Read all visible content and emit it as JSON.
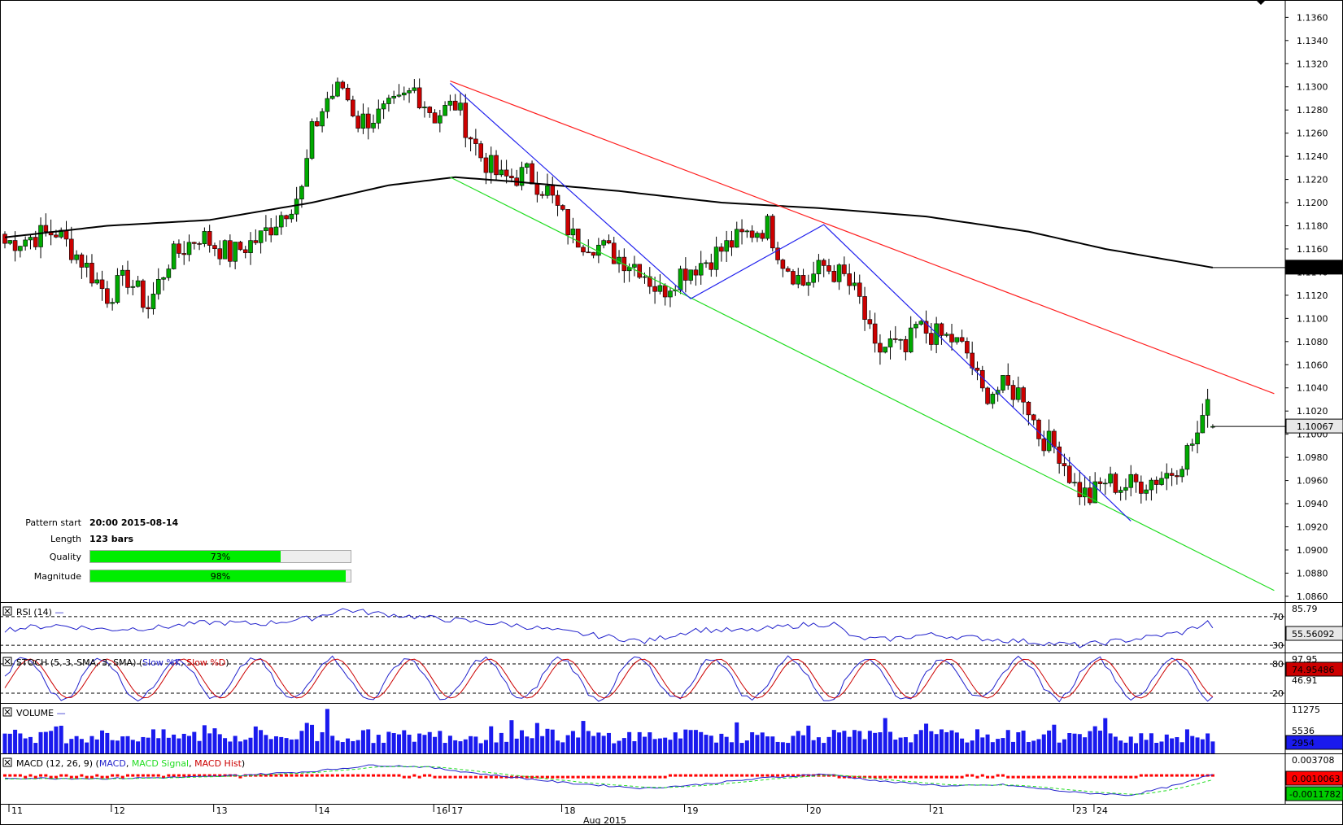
{
  "chart_data": {
    "type": "candlestick",
    "symbol_timeframe": "",
    "price_axis": {
      "ticks": [
        "1.1360",
        "1.1340",
        "1.1320",
        "1.1300",
        "1.1280",
        "1.1260",
        "1.1240",
        "1.1220",
        "1.1200",
        "1.1180",
        "1.1160",
        "1.1140",
        "1.1120",
        "1.1100",
        "1.1080",
        "1.1060",
        "1.1040",
        "1.1020",
        "1.1000",
        "1.0980",
        "1.0960",
        "1.0940",
        "1.0920",
        "1.0900",
        "1.0880",
        "1.0860"
      ],
      "ylim": [
        1.0855,
        1.1375
      ],
      "ma_label": "1.11439",
      "last_label": "1.10067"
    },
    "x_axis": {
      "day_labels": [
        "11",
        "12",
        "13",
        "14",
        "16",
        "17",
        "18",
        "19",
        "20",
        "21",
        "23",
        "24"
      ],
      "month_label": "Aug 2015"
    },
    "pattern_info": {
      "pattern_start_label": "Pattern start",
      "pattern_start_value": "20:00 2015-08-14",
      "length_label": "Length",
      "length_value": "123 bars",
      "quality_label": "Quality",
      "quality_value": 73,
      "quality_text": "73%",
      "magnitude_label": "Magnitude",
      "magnitude_value": 98,
      "magnitude_text": "98%"
    },
    "price_anchors": [
      [
        0,
        1.1165
      ],
      [
        5,
        1.117
      ],
      [
        10,
        1.1175
      ],
      [
        15,
        1.115
      ],
      [
        20,
        1.112
      ],
      [
        24,
        1.1135
      ],
      [
        28,
        1.111
      ],
      [
        32,
        1.115
      ],
      [
        38,
        1.1172
      ],
      [
        44,
        1.1155
      ],
      [
        50,
        1.117
      ],
      [
        55,
        1.1195
      ],
      [
        58,
        1.121
      ],
      [
        60,
        1.126
      ],
      [
        63,
        1.129
      ],
      [
        66,
        1.13
      ],
      [
        69,
        1.127
      ],
      [
        73,
        1.1275
      ],
      [
        77,
        1.1285
      ],
      [
        80,
        1.1298
      ],
      [
        84,
        1.1275
      ],
      [
        88,
        1.1285
      ],
      [
        93,
        1.124
      ],
      [
        97,
        1.122
      ],
      [
        102,
        1.1225
      ],
      [
        106,
        1.121
      ],
      [
        111,
        1.117
      ],
      [
        115,
        1.1165
      ],
      [
        119,
        1.1155
      ],
      [
        124,
        1.1145
      ],
      [
        128,
        1.1122
      ],
      [
        132,
        1.114
      ],
      [
        137,
        1.115
      ],
      [
        142,
        1.1165
      ],
      [
        146,
        1.1175
      ],
      [
        149,
        1.118
      ],
      [
        152,
        1.115
      ],
      [
        156,
        1.113
      ],
      [
        160,
        1.1145
      ],
      [
        164,
        1.1135
      ],
      [
        167,
        1.1115
      ],
      [
        170,
        1.107
      ],
      [
        173,
        1.1078
      ],
      [
        176,
        1.107
      ],
      [
        178,
        1.1092
      ],
      [
        182,
        1.1085
      ],
      [
        185,
        1.1082
      ],
      [
        188,
        1.107
      ],
      [
        191,
        1.1035
      ],
      [
        195,
        1.104
      ],
      [
        199,
        1.1035
      ],
      [
        202,
        1.1
      ],
      [
        206,
        1.0985
      ],
      [
        209,
        1.0955
      ],
      [
        212,
        1.0945
      ],
      [
        215,
        1.096
      ],
      [
        218,
        1.0955
      ],
      [
        222,
        1.0958
      ],
      [
        225,
        1.0962
      ],
      [
        228,
        1.0968
      ],
      [
        231,
        1.0985
      ],
      [
        235,
        1.1015
      ],
      [
        236,
        1.1007
      ]
    ],
    "ma": [
      [
        0,
        1.117
      ],
      [
        20,
        1.118
      ],
      [
        40,
        1.1185
      ],
      [
        60,
        1.12
      ],
      [
        75,
        1.1215
      ],
      [
        88,
        1.1222
      ],
      [
        100,
        1.1218
      ],
      [
        120,
        1.121
      ],
      [
        140,
        1.12
      ],
      [
        160,
        1.1195
      ],
      [
        180,
        1.1188
      ],
      [
        200,
        1.1175
      ],
      [
        215,
        1.116
      ],
      [
        236,
        1.11439
      ]
    ],
    "channel": {
      "upper": [
        [
          87,
          1.1305
        ],
        [
          248,
          1.1035
        ]
      ],
      "lower": [
        [
          87,
          1.1222
        ],
        [
          248,
          1.0865
        ]
      ],
      "zigzag": [
        [
          87,
          1.1303
        ],
        [
          134,
          1.1117
        ],
        [
          160,
          1.1181
        ],
        [
          220,
          1.0925
        ]
      ]
    },
    "rsi": {
      "label": "RSI (14)",
      "levels": [
        70,
        30
      ],
      "level_labels": [
        "70",
        "30"
      ],
      "top_label": "85.79",
      "value_label": "55.56092",
      "range": [
        20,
        88
      ],
      "anchors": [
        [
          0,
          52
        ],
        [
          10,
          58
        ],
        [
          20,
          52
        ],
        [
          30,
          55
        ],
        [
          40,
          62
        ],
        [
          50,
          60
        ],
        [
          60,
          68
        ],
        [
          66,
          80
        ],
        [
          72,
          75
        ],
        [
          80,
          70
        ],
        [
          88,
          65
        ],
        [
          100,
          58
        ],
        [
          110,
          48
        ],
        [
          120,
          40
        ],
        [
          125,
          35
        ],
        [
          135,
          52
        ],
        [
          145,
          50
        ],
        [
          155,
          58
        ],
        [
          162,
          60
        ],
        [
          166,
          40
        ],
        [
          172,
          38
        ],
        [
          180,
          45
        ],
        [
          190,
          40
        ],
        [
          200,
          35
        ],
        [
          210,
          30
        ],
        [
          220,
          38
        ],
        [
          230,
          48
        ],
        [
          235,
          62
        ],
        [
          236,
          56
        ]
      ]
    },
    "stoch": {
      "label": "STOCH (5, 3, SMA, 3, SMA)",
      "legend_slow_k": "Slow %K",
      "legend_slow_d": "Slow %D",
      "levels": [
        80,
        20
      ],
      "level_labels": [
        "80",
        "20"
      ],
      "top_label": "97.95",
      "mid_label": "46.91",
      "value_label": "74.95486",
      "range": [
        0,
        100
      ]
    },
    "volume": {
      "label": "VOLUME",
      "top_label": "11275",
      "mid_label": "5536",
      "value_label": "2954",
      "max": 11275
    },
    "macd": {
      "label": "MACD (12, 26, 9)",
      "legend_macd": "MACD",
      "legend_signal": "MACD Signal",
      "legend_hist": "MACD Hist",
      "top_label": "0.003708",
      "hist_label": "0.0010063",
      "signal_label": "-0.0011782",
      "anchors": [
        [
          0,
          0.0003
        ],
        [
          20,
          0.0002
        ],
        [
          40,
          0.0006
        ],
        [
          60,
          0.0018
        ],
        [
          72,
          0.0032
        ],
        [
          82,
          0.0028
        ],
        [
          95,
          0.001
        ],
        [
          110,
          -0.0008
        ],
        [
          125,
          -0.002
        ],
        [
          135,
          -0.0012
        ],
        [
          150,
          0.0005
        ],
        [
          160,
          0.0012
        ],
        [
          172,
          -0.0005
        ],
        [
          185,
          -0.0015
        ],
        [
          195,
          -0.0012
        ],
        [
          210,
          -0.003
        ],
        [
          220,
          -0.0035
        ],
        [
          230,
          -0.001
        ],
        [
          236,
          0.0012
        ]
      ]
    },
    "colors": {
      "bull": "#00aa00",
      "bear": "#cc0000",
      "ma": "#000000",
      "upper_line": "#ff2020",
      "lower_line": "#22dd22",
      "zigzag": "#2222ee",
      "rsi": "#2222cc",
      "volume": "#1a1aee",
      "signal_box": "#00cc00",
      "hist_box": "#ff0000"
    }
  }
}
